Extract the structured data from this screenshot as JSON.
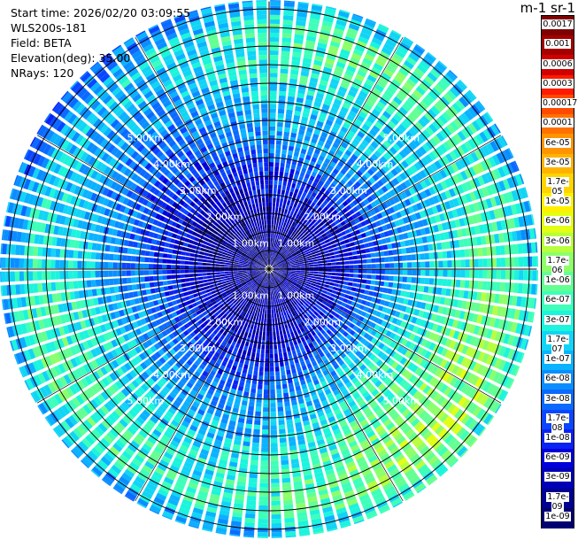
{
  "info": {
    "start_time": "Start time: 2026/02/20 03:09:55",
    "instrument": "WLS200s-181",
    "field": "Field: BETA",
    "elevation": "Elevation(deg): 35.00",
    "nrays": "NRays: 120"
  },
  "colorbar": {
    "unit_label": "m-1 sr-1",
    "ticks": [
      "0.0017",
      "0.001",
      "0.0006",
      "0.0003",
      "0.00017",
      "0.0001",
      "6e-05",
      "3e-05",
      "1.7e-05",
      "1e-05",
      "6e-06",
      "3e-06",
      "1.7e-06",
      "1e-06",
      "6e-07",
      "3e-07",
      "1.7e-07",
      "1e-07",
      "6e-08",
      "3e-08",
      "1.7e-08",
      "1e-08",
      "6e-09",
      "3e-09",
      "1.7e-09",
      "1e-09"
    ],
    "colors": [
      "#7f0000",
      "#a50000",
      "#d00000",
      "#ff1a00",
      "#ff4a00",
      "#ff7000",
      "#ff9400",
      "#ffb300",
      "#ffd400",
      "#fff000",
      "#e2ff14",
      "#b8ff3e",
      "#8cff6a",
      "#63ff93",
      "#3dffba",
      "#1cf4dc",
      "#12d4f5",
      "#0ab2ff",
      "#0a8eff",
      "#0a6aff",
      "#0a46ff",
      "#0a22f2",
      "#0000d8",
      "#0000b4",
      "#000090",
      "#000070"
    ]
  },
  "range_labels": [
    "1.00km",
    "2.00km",
    "3.00km",
    "4.00km",
    "5.00km"
  ],
  "chart_data": {
    "type": "heatmap",
    "projection": "polar-ppi",
    "n_rays": 120,
    "range_rings_km": [
      1,
      2,
      3,
      4,
      5
    ],
    "max_range_km": 7.2,
    "field": "BETA",
    "colorscale": "log",
    "radial_profile_log10_beta": [
      {
        "range_km": 0.5,
        "value": -8.6
      },
      {
        "range_km": 1.5,
        "value": -8.4
      },
      {
        "range_km": 2.5,
        "value": -7.9
      },
      {
        "range_km": 3.5,
        "value": -7.2
      },
      {
        "range_km": 4.5,
        "value": -6.8
      },
      {
        "range_km": 5.5,
        "value": -6.4
      },
      {
        "range_km": 6.5,
        "value": -6.2
      },
      {
        "range_km": 7.0,
        "value": -6.9
      }
    ]
  }
}
